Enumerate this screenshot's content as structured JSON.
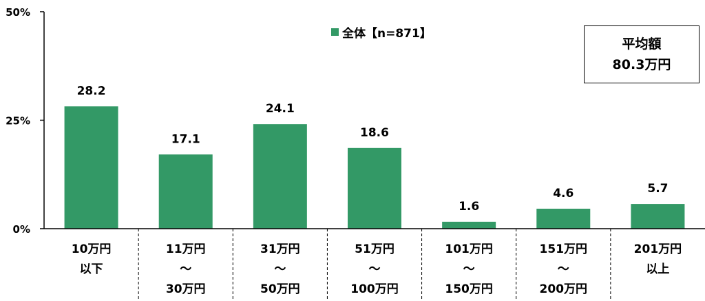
{
  "chart_data": {
    "type": "bar",
    "categories": [
      [
        "10万円",
        "以下"
      ],
      [
        "11万円",
        "～",
        "30万円"
      ],
      [
        "31万円",
        "～",
        "50万円"
      ],
      [
        "51万円",
        "～",
        "100万円"
      ],
      [
        "101万円",
        "～",
        "150万円"
      ],
      [
        "151万円",
        "～",
        "200万円"
      ],
      [
        "201万円",
        "以上"
      ]
    ],
    "series": [
      {
        "name": "全体【n=871】",
        "values": [
          28.2,
          17.1,
          24.1,
          18.6,
          1.6,
          4.6,
          5.7
        ]
      }
    ],
    "data_labels": [
      "28.2",
      "17.1",
      "24.1",
      "18.6",
      "1.6",
      "4.6",
      "5.7"
    ],
    "ylim": [
      0,
      50
    ],
    "yticks": [
      0,
      25,
      50
    ],
    "ytick_labels": [
      "0%",
      "25%",
      "50%"
    ],
    "grid": false,
    "legend_position": "top-center",
    "bar_color": "#339966"
  },
  "note": {
    "title": "平均額",
    "value": "80.3万円"
  }
}
